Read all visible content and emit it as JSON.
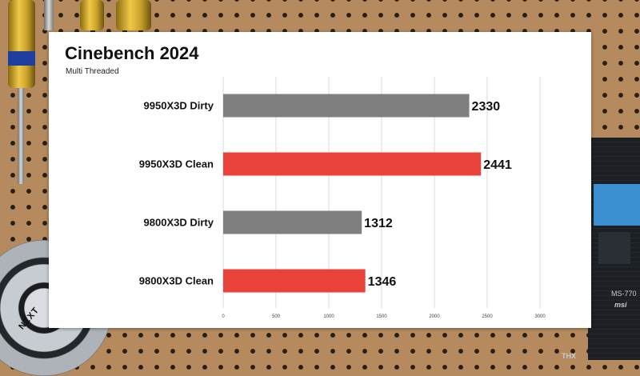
{
  "scene": {
    "fan_brand": "NZXT",
    "board_brand": "msi",
    "board_model": "MS-770",
    "board_badge": "THX"
  },
  "colors": {
    "gray_bar": "#7f7f7f",
    "red_bar": "#e8423a",
    "grid": "#d9d9d9",
    "card": "#ffffff"
  },
  "chart_data": {
    "type": "bar",
    "orientation": "horizontal",
    "title": "Cinebench 2024",
    "subtitle": "Multi Threaded",
    "xlabel": "",
    "ylabel": "",
    "categories": [
      "9950X3D Dirty",
      "9950X3D Clean",
      "9800X3D Dirty",
      "9800X3D Clean"
    ],
    "values": [
      2330,
      2441,
      1312,
      1346
    ],
    "bar_colors": [
      "#7f7f7f",
      "#e8423a",
      "#7f7f7f",
      "#e8423a"
    ],
    "xlim": [
      0,
      3000
    ],
    "xticks": [
      "0",
      "500",
      "1000",
      "1500",
      "2000",
      "2500",
      "3000"
    ],
    "xtick_values": [
      0,
      500,
      1000,
      1500,
      2000,
      2500,
      3000
    ],
    "grid": true,
    "legend": "none",
    "data_labels": true
  }
}
